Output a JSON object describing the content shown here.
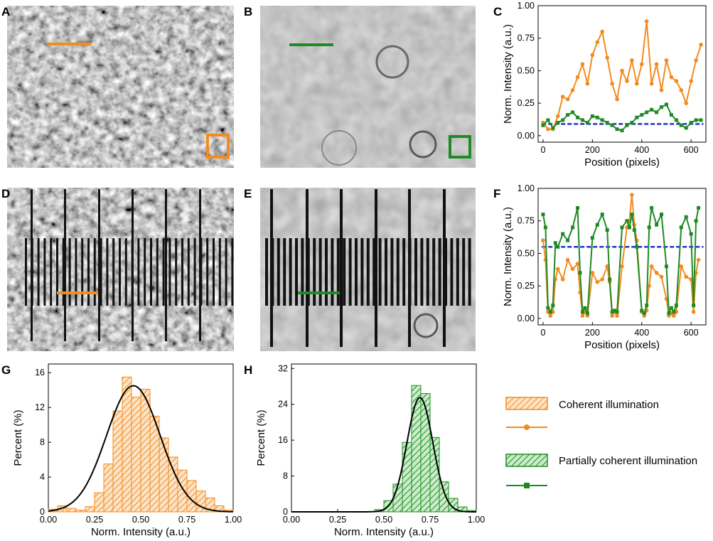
{
  "panels": {
    "A": "A",
    "B": "B",
    "C": "C",
    "D": "D",
    "E": "E",
    "F": "F",
    "G": "G",
    "H": "H"
  },
  "colors": {
    "coherent": "#f28c1e",
    "partial": "#1f8a24",
    "threshold": "#2430c8",
    "fit": "#000000"
  },
  "legend": {
    "coherent_label": "Coherent illumination",
    "partial_label": "Partially coherent illumination"
  },
  "chart_data": [
    {
      "id": "C",
      "type": "line",
      "xlabel": "Position (pixels)",
      "ylabel": "Norm. Intensity (a.u.)",
      "xlim": [
        -20,
        660
      ],
      "ylim": [
        -0.05,
        1.0
      ],
      "xticks": [
        0,
        200,
        400,
        600
      ],
      "yticks": [
        0.0,
        0.25,
        0.5,
        0.75,
        1.0
      ],
      "threshold": 0.09,
      "series": [
        {
          "name": "Coherent illumination",
          "color": "#f28c1e",
          "marker": "circle",
          "x": [
            0,
            20,
            40,
            60,
            80,
            100,
            120,
            140,
            160,
            180,
            200,
            220,
            240,
            260,
            280,
            300,
            320,
            340,
            360,
            380,
            400,
            420,
            440,
            460,
            480,
            500,
            520,
            540,
            560,
            580,
            600,
            620,
            640
          ],
          "y": [
            0.1,
            0.05,
            0.05,
            0.15,
            0.3,
            0.28,
            0.35,
            0.45,
            0.55,
            0.4,
            0.62,
            0.72,
            0.8,
            0.6,
            0.4,
            0.28,
            0.5,
            0.42,
            0.58,
            0.4,
            0.55,
            0.88,
            0.4,
            0.55,
            0.35,
            0.58,
            0.45,
            0.42,
            0.35,
            0.25,
            0.42,
            0.58,
            0.7
          ]
        },
        {
          "name": "Partially coherent illumination",
          "color": "#1f8a24",
          "marker": "square",
          "x": [
            0,
            20,
            40,
            60,
            80,
            100,
            120,
            140,
            160,
            180,
            200,
            220,
            240,
            260,
            280,
            300,
            320,
            340,
            360,
            380,
            400,
            420,
            440,
            460,
            480,
            500,
            520,
            540,
            560,
            580,
            600,
            620,
            640
          ],
          "y": [
            0.08,
            0.12,
            0.06,
            0.1,
            0.12,
            0.16,
            0.18,
            0.14,
            0.12,
            0.1,
            0.15,
            0.14,
            0.12,
            0.1,
            0.08,
            0.05,
            0.04,
            0.08,
            0.1,
            0.14,
            0.16,
            0.18,
            0.2,
            0.18,
            0.22,
            0.24,
            0.16,
            0.12,
            0.08,
            0.06,
            0.1,
            0.12,
            0.12
          ]
        }
      ]
    },
    {
      "id": "F",
      "type": "line",
      "xlabel": "Position (pixels)",
      "ylabel": "Norm. Intensity (a.u.)",
      "xlim": [
        -20,
        660
      ],
      "ylim": [
        -0.05,
        1.0
      ],
      "xticks": [
        0,
        200,
        400,
        600
      ],
      "yticks": [
        0.0,
        0.25,
        0.5,
        0.75,
        1.0
      ],
      "threshold": 0.55,
      "series": [
        {
          "name": "Coherent illumination",
          "color": "#f28c1e",
          "marker": "circle",
          "x": [
            0,
            10,
            20,
            30,
            40,
            50,
            60,
            80,
            100,
            120,
            140,
            150,
            160,
            170,
            180,
            200,
            220,
            240,
            260,
            270,
            280,
            290,
            300,
            320,
            340,
            350,
            360,
            370,
            380,
            400,
            410,
            420,
            430,
            440,
            460,
            480,
            500,
            510,
            520,
            530,
            540,
            560,
            580,
            600,
            610,
            620,
            630
          ],
          "y": [
            0.6,
            0.45,
            0.05,
            0.02,
            0.05,
            0.3,
            0.38,
            0.3,
            0.45,
            0.38,
            0.42,
            0.2,
            0.02,
            0.05,
            0.02,
            0.35,
            0.28,
            0.3,
            0.4,
            0.28,
            0.02,
            0.05,
            0.02,
            0.4,
            0.7,
            0.75,
            0.95,
            0.72,
            0.6,
            0.05,
            0.02,
            0.06,
            0.25,
            0.4,
            0.35,
            0.32,
            0.15,
            0.02,
            0.04,
            0.02,
            0.05,
            0.4,
            0.32,
            0.3,
            0.05,
            0.35,
            0.45
          ]
        },
        {
          "name": "Partially coherent illumination",
          "color": "#1f8a24",
          "marker": "square",
          "x": [
            0,
            10,
            20,
            30,
            40,
            50,
            60,
            80,
            100,
            120,
            140,
            150,
            160,
            170,
            180,
            200,
            220,
            240,
            260,
            270,
            280,
            290,
            300,
            320,
            340,
            350,
            360,
            370,
            380,
            400,
            410,
            420,
            430,
            440,
            460,
            480,
            500,
            510,
            520,
            530,
            540,
            560,
            580,
            600,
            610,
            620,
            630
          ],
          "y": [
            0.8,
            0.7,
            0.08,
            0.05,
            0.1,
            0.58,
            0.55,
            0.65,
            0.6,
            0.7,
            0.85,
            0.35,
            0.05,
            0.08,
            0.04,
            0.62,
            0.72,
            0.8,
            0.68,
            0.3,
            0.05,
            0.06,
            0.05,
            0.7,
            0.75,
            0.7,
            0.8,
            0.68,
            0.55,
            0.06,
            0.04,
            0.1,
            0.7,
            0.85,
            0.72,
            0.8,
            0.4,
            0.04,
            0.08,
            0.05,
            0.1,
            0.7,
            0.78,
            0.65,
            0.1,
            0.75,
            0.85
          ]
        }
      ]
    },
    {
      "id": "G",
      "type": "bar",
      "xlabel": "Norm. Intensity (a.u.)",
      "ylabel": "Percent (%)",
      "xlim": [
        0.0,
        1.0
      ],
      "ylim": [
        0,
        17
      ],
      "xticks": [
        0.0,
        0.25,
        0.5,
        0.75,
        1.0
      ],
      "yticks": [
        0,
        4,
        8,
        12,
        16
      ],
      "bin_width": 0.05,
      "color": "#f28c1e",
      "bins": [
        0.0,
        0.05,
        0.1,
        0.15,
        0.2,
        0.25,
        0.3,
        0.35,
        0.4,
        0.45,
        0.5,
        0.55,
        0.6,
        0.65,
        0.7,
        0.75,
        0.8,
        0.85,
        0.9,
        0.95
      ],
      "values": [
        0.3,
        0.7,
        0.4,
        0.2,
        0.6,
        2.2,
        5.5,
        11.6,
        15.5,
        13.2,
        14.1,
        11.0,
        8.5,
        6.3,
        4.8,
        3.6,
        2.4,
        1.6,
        0.7,
        0.2
      ],
      "fit": {
        "type": "gaussian",
        "mean": 0.46,
        "sigma": 0.145,
        "peak": 14.5
      }
    },
    {
      "id": "H",
      "type": "bar",
      "xlabel": "Norm. Intensity (a.u.)",
      "ylabel": "Percent (%)",
      "xlim": [
        0.0,
        1.0
      ],
      "ylim": [
        0,
        33
      ],
      "xticks": [
        0.0,
        0.25,
        0.5,
        0.75,
        1.0
      ],
      "yticks": [
        0,
        8,
        16,
        24,
        32
      ],
      "bin_width": 0.05,
      "color": "#1f8a24",
      "bins": [
        0.45,
        0.5,
        0.55,
        0.6,
        0.65,
        0.7,
        0.75,
        0.8,
        0.85,
        0.9,
        0.95
      ],
      "values": [
        0.5,
        2.5,
        6.2,
        15.5,
        28.2,
        26.4,
        16.6,
        6.7,
        3.0,
        1.1,
        0.3
      ],
      "fit": {
        "type": "gaussian",
        "mean": 0.695,
        "sigma": 0.07,
        "peak": 25.5
      }
    }
  ]
}
